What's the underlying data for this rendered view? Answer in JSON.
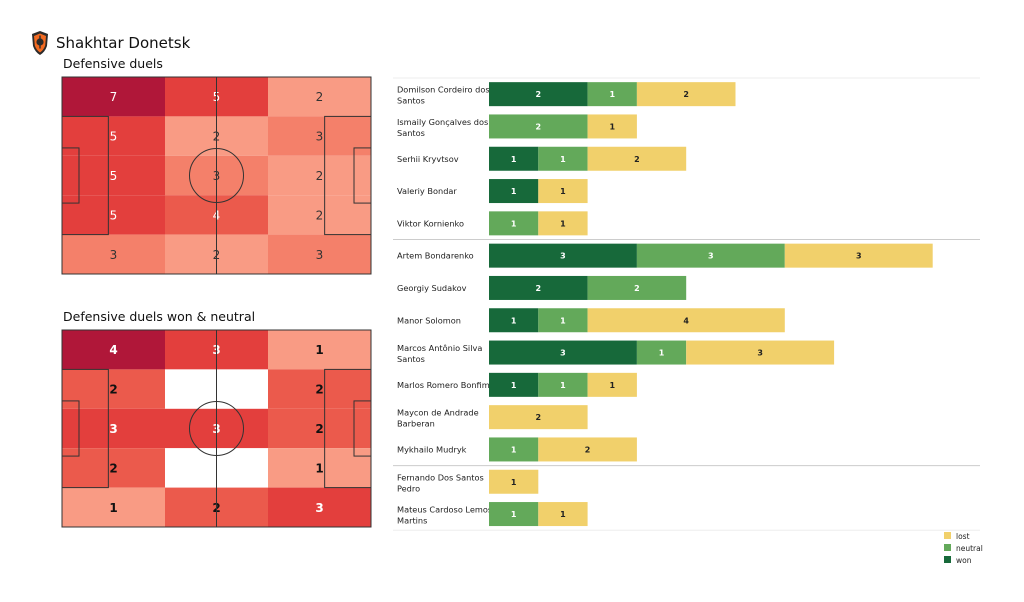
{
  "team": {
    "name": "Shakhtar Donetsk"
  },
  "colors": {
    "won": "#17693a",
    "neutral": "#63a95a",
    "lost": "#f1d06b"
  },
  "legend": {
    "lost": "lost",
    "neutral": "neutral",
    "won": "won"
  },
  "chart_data": [
    {
      "type": "heatmap",
      "title": "Defensive duels",
      "grid": [
        [
          7,
          5,
          2
        ],
        [
          5,
          2,
          3
        ],
        [
          5,
          3,
          2
        ],
        [
          5,
          4,
          2
        ],
        [
          3,
          2,
          3
        ]
      ]
    },
    {
      "type": "heatmap",
      "title": "Defensive duels won & neutral",
      "grid": [
        [
          4,
          3,
          1
        ],
        [
          2,
          0,
          2
        ],
        [
          3,
          3,
          2
        ],
        [
          2,
          0,
          1
        ],
        [
          1,
          2,
          3
        ]
      ]
    },
    {
      "type": "bar",
      "orientation": "horizontal",
      "stacked": true,
      "categories": [
        "Domilson Cordeiro dos Santos",
        "Ismaily Gonçalves dos Santos",
        "Serhii Kryvtsov",
        "Valeriy Bondar",
        "Viktor Kornienko",
        "Artem Bondarenko",
        "Georgiy Sudakov",
        "Manor Solomon",
        "Marcos Antônio Silva Santos",
        "Marlos Romero Bonfim",
        "Maycon de Andrade Barberan",
        "Mykhailo Mudryk",
        "Fernando Dos Santos Pedro",
        "Mateus Cardoso Lemos Martins"
      ],
      "groups": [
        [
          0,
          4
        ],
        [
          5,
          11
        ],
        [
          12,
          13
        ]
      ],
      "series": [
        {
          "name": "won",
          "values": [
            2,
            0,
            1,
            1,
            0,
            3,
            2,
            1,
            3,
            1,
            0,
            0,
            0,
            0
          ]
        },
        {
          "name": "neutral",
          "values": [
            1,
            2,
            1,
            0,
            1,
            3,
            2,
            1,
            1,
            1,
            0,
            1,
            0,
            1
          ]
        },
        {
          "name": "lost",
          "values": [
            2,
            1,
            2,
            1,
            1,
            3,
            0,
            4,
            3,
            1,
            2,
            2,
            1,
            1
          ]
        }
      ],
      "legend_position": "bottom-right"
    }
  ]
}
